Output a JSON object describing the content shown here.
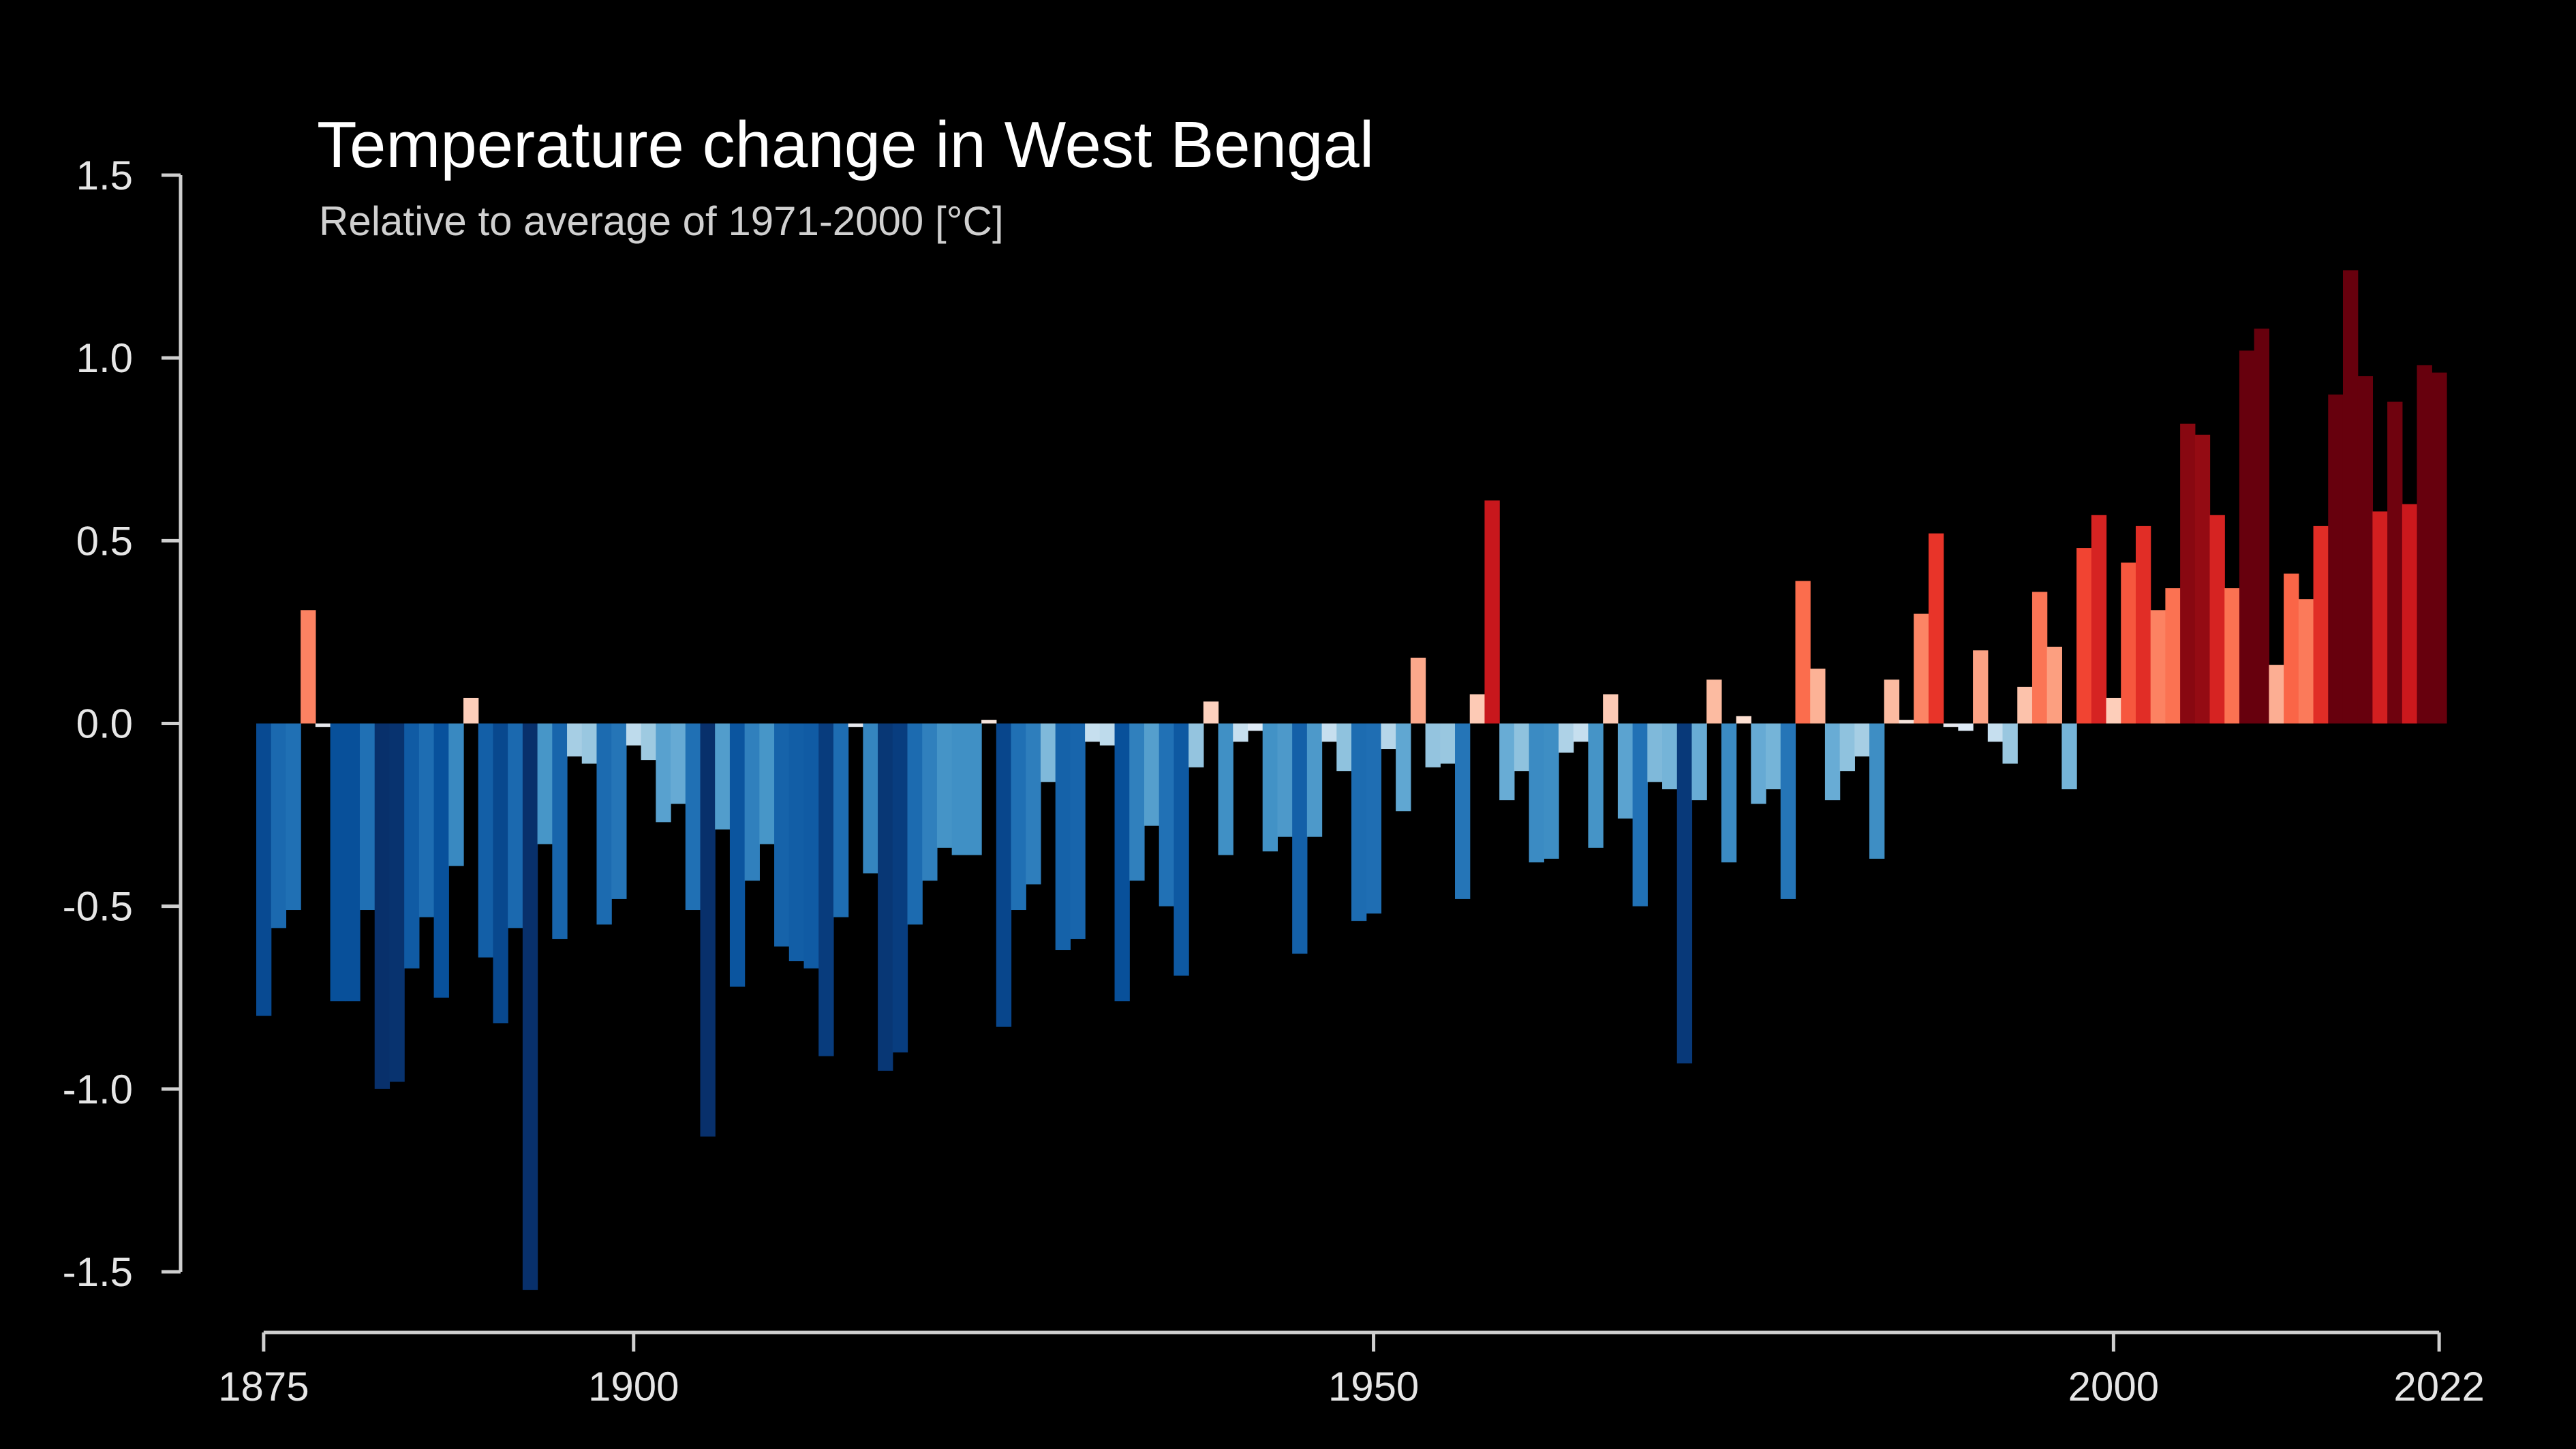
{
  "chart_data": {
    "type": "bar",
    "title": "Temperature change in West Bengal",
    "subtitle": "Relative to average of 1971-2000  [°C]",
    "xlabel": "",
    "ylabel": "",
    "x_start": 1875,
    "x_end": 2022,
    "xlim": [
      1875,
      2022
    ],
    "ylim": [
      -1.5,
      1.5
    ],
    "x_ticks": [
      "1875",
      "1900",
      "1950",
      "2000",
      "2022"
    ],
    "y_ticks": [
      "1.5",
      "1.0",
      "0.5",
      "0.0",
      "-0.5",
      "-1.0",
      "-1.5"
    ],
    "grid": false,
    "legend": "none",
    "color_scale": {
      "cold": "#08306b",
      "neutral_cold": "#deebf7",
      "neutral_warm": "#fee0d2",
      "warm": "#67000d"
    },
    "years": [
      1875,
      1876,
      1877,
      1878,
      1879,
      1880,
      1881,
      1882,
      1883,
      1884,
      1885,
      1886,
      1887,
      1888,
      1889,
      1890,
      1891,
      1892,
      1893,
      1894,
      1895,
      1896,
      1897,
      1898,
      1899,
      1900,
      1901,
      1902,
      1903,
      1904,
      1905,
      1906,
      1907,
      1908,
      1909,
      1910,
      1911,
      1912,
      1913,
      1914,
      1915,
      1916,
      1917,
      1918,
      1919,
      1920,
      1921,
      1922,
      1923,
      1924,
      1925,
      1926,
      1927,
      1928,
      1929,
      1930,
      1931,
      1932,
      1933,
      1934,
      1935,
      1936,
      1937,
      1938,
      1939,
      1940,
      1941,
      1942,
      1943,
      1944,
      1945,
      1946,
      1947,
      1948,
      1949,
      1950,
      1951,
      1952,
      1953,
      1954,
      1955,
      1956,
      1957,
      1958,
      1959,
      1960,
      1961,
      1962,
      1963,
      1964,
      1965,
      1966,
      1967,
      1968,
      1969,
      1970,
      1971,
      1972,
      1973,
      1974,
      1975,
      1976,
      1977,
      1978,
      1979,
      1980,
      1981,
      1982,
      1983,
      1984,
      1985,
      1986,
      1987,
      1988,
      1989,
      1990,
      1991,
      1992,
      1993,
      1994,
      1995,
      1996,
      1997,
      1998,
      1999,
      2000,
      2001,
      2002,
      2003,
      2004,
      2005,
      2006,
      2007,
      2008,
      2009,
      2010,
      2011,
      2012,
      2013,
      2014,
      2015,
      2016,
      2017,
      2018,
      2019,
      2020,
      2021,
      2022
    ],
    "values": [
      -0.8,
      -0.56,
      -0.51,
      0.31,
      -0.01,
      -0.76,
      -0.76,
      -0.51,
      -1.0,
      -0.98,
      -0.67,
      -0.53,
      -0.75,
      -0.39,
      0.07,
      -0.64,
      -0.82,
      -0.56,
      -1.55,
      -0.33,
      -0.59,
      -0.09,
      -0.11,
      -0.55,
      -0.48,
      -0.06,
      -0.1,
      -0.27,
      -0.22,
      -0.51,
      -1.13,
      -0.29,
      -0.72,
      -0.43,
      -0.33,
      -0.61,
      -0.65,
      -0.67,
      -0.91,
      -0.53,
      -0.01,
      -0.41,
      -0.95,
      -0.9,
      -0.55,
      -0.43,
      -0.34,
      -0.36,
      -0.36,
      0.01,
      -0.83,
      -0.51,
      -0.44,
      -0.16,
      -0.62,
      -0.59,
      -0.05,
      -0.06,
      -0.76,
      -0.43,
      -0.28,
      -0.5,
      -0.69,
      -0.12,
      0.06,
      -0.36,
      -0.05,
      -0.02,
      -0.35,
      -0.31,
      -0.63,
      -0.31,
      -0.05,
      -0.13,
      -0.54,
      -0.52,
      -0.07,
      -0.24,
      0.18,
      -0.12,
      -0.11,
      -0.48,
      0.08,
      0.61,
      -0.21,
      -0.13,
      -0.38,
      -0.37,
      -0.08,
      -0.05,
      -0.34,
      0.08,
      -0.26,
      -0.5,
      -0.16,
      -0.18,
      -0.93,
      -0.21,
      0.12,
      -0.38,
      0.02,
      -0.22,
      -0.18,
      -0.48,
      0.39,
      0.15,
      -0.21,
      -0.13,
      -0.09,
      -0.37,
      0.12,
      0.01,
      0.3,
      0.52,
      -0.01,
      -0.02,
      0.2,
      -0.05,
      -0.11,
      0.1,
      0.36,
      0.21,
      -0.18,
      0.48,
      0.57,
      0.07,
      0.44,
      0.54,
      0.31,
      0.37,
      0.82,
      0.79,
      0.57,
      0.37,
      1.02,
      1.08,
      0.16,
      0.41,
      0.34,
      0.54,
      0.9,
      1.24,
      0.95,
      0.58,
      0.88,
      0.6,
      0.98,
      0.96
    ]
  }
}
